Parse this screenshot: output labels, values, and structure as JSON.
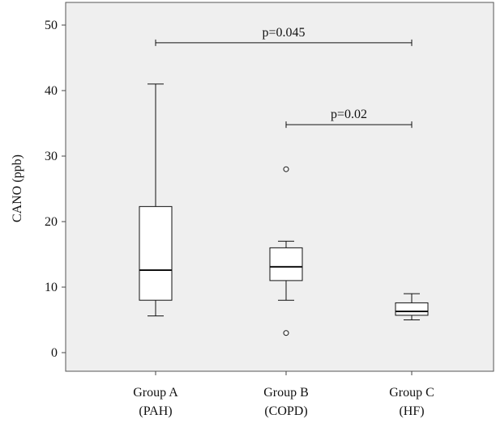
{
  "chart_data": {
    "type": "box",
    "title": "",
    "xlabel": "",
    "ylabel": "CANO (ppb)",
    "ylim": [
      -3,
      53
    ],
    "yticks": [
      0,
      10,
      20,
      30,
      40,
      50
    ],
    "grid": false,
    "legend": "none",
    "colors": {
      "plot_background": "#efefef",
      "box_fill": "#ffffff",
      "stroke": "#111111",
      "axis": "#444444"
    },
    "categories": [
      {
        "line1": "Group A",
        "line2": "(PAH)"
      },
      {
        "line1": "Group B",
        "line2": "(COPD)"
      },
      {
        "line1": "Group C",
        "line2": "(HF)"
      }
    ],
    "boxes": [
      {
        "whisker_low": 5.6,
        "q1": 8.0,
        "median": 12.6,
        "q3": 22.3,
        "whisker_high": 41.0,
        "outliers": []
      },
      {
        "whisker_low": 8.0,
        "q1": 11.0,
        "median": 13.1,
        "q3": 16.0,
        "whisker_high": 17.0,
        "outliers": [
          28.0,
          3.0
        ]
      },
      {
        "whisker_low": 5.0,
        "q1": 5.7,
        "median": 6.3,
        "q3": 7.6,
        "whisker_high": 9.0,
        "outliers": []
      }
    ],
    "annotations": [
      {
        "label": "p=0.045",
        "from": 0,
        "to": 2,
        "y": 47.3
      },
      {
        "label": "p=0.02",
        "from": 1,
        "to": 2,
        "y": 34.8
      }
    ]
  }
}
